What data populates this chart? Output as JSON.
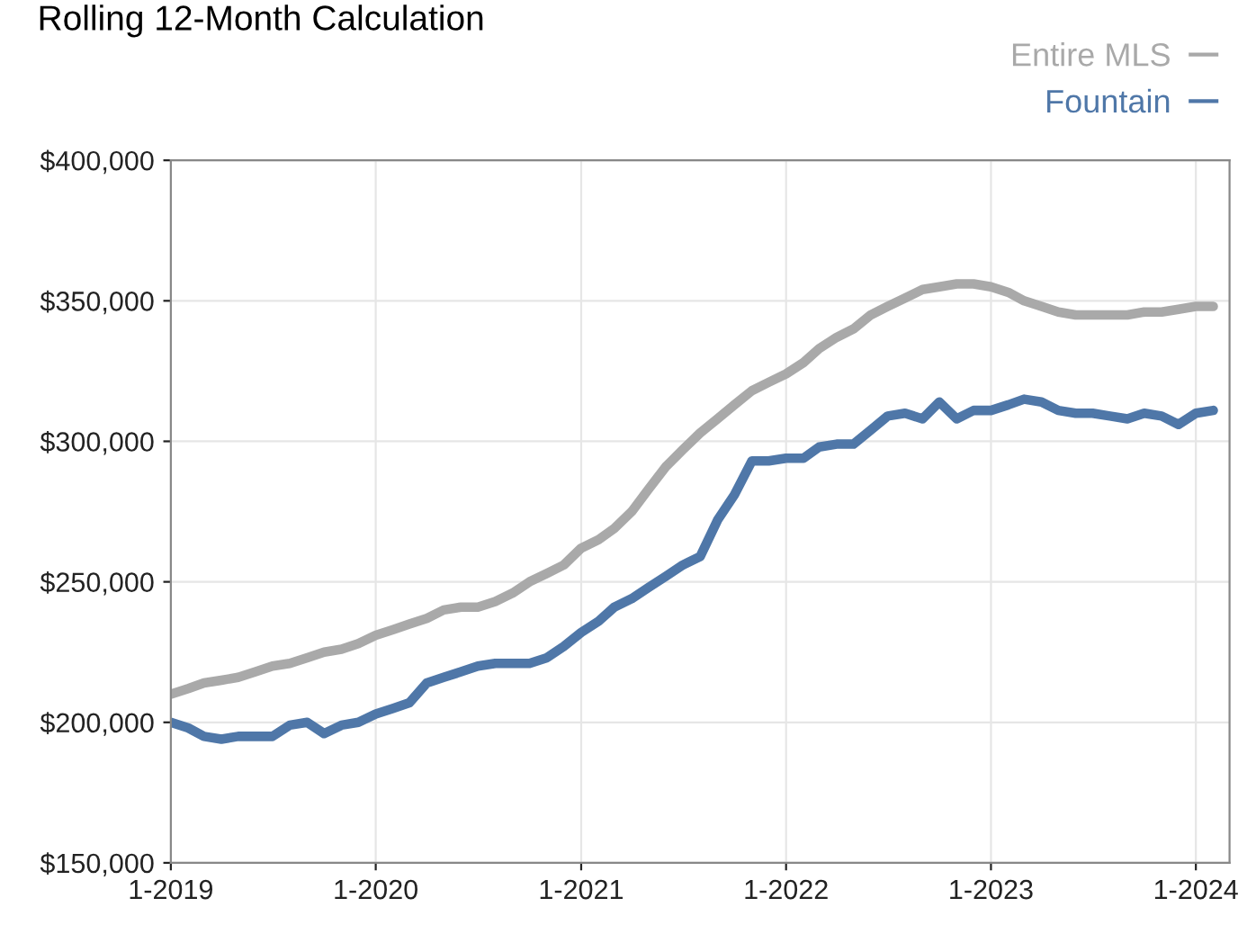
{
  "chart_data": {
    "type": "line",
    "title": "Rolling 12-Month Calculation",
    "x": [
      "2019-01",
      "2019-02",
      "2019-03",
      "2019-04",
      "2019-05",
      "2019-06",
      "2019-07",
      "2019-08",
      "2019-09",
      "2019-10",
      "2019-11",
      "2019-12",
      "2020-01",
      "2020-02",
      "2020-03",
      "2020-04",
      "2020-05",
      "2020-06",
      "2020-07",
      "2020-08",
      "2020-09",
      "2020-10",
      "2020-11",
      "2020-12",
      "2021-01",
      "2021-02",
      "2021-03",
      "2021-04",
      "2021-05",
      "2021-06",
      "2021-07",
      "2021-08",
      "2021-09",
      "2021-10",
      "2021-11",
      "2021-12",
      "2022-01",
      "2022-02",
      "2022-03",
      "2022-04",
      "2022-05",
      "2022-06",
      "2022-07",
      "2022-08",
      "2022-09",
      "2022-10",
      "2022-11",
      "2022-12",
      "2023-01",
      "2023-02",
      "2023-03",
      "2023-04",
      "2023-05",
      "2023-06",
      "2023-07",
      "2023-08",
      "2023-09",
      "2023-10",
      "2023-11",
      "2023-12",
      "2024-01",
      "2024-02"
    ],
    "series": [
      {
        "name": "Entire MLS",
        "color": "#a9a9a9",
        "values": [
          210000,
          212000,
          214000,
          215000,
          216000,
          218000,
          220000,
          221000,
          223000,
          225000,
          226000,
          228000,
          231000,
          233000,
          235000,
          237000,
          240000,
          241000,
          241000,
          243000,
          246000,
          250000,
          253000,
          256000,
          262000,
          265000,
          269000,
          275000,
          283000,
          291000,
          297000,
          303000,
          308000,
          313000,
          318000,
          321000,
          324000,
          328000,
          333000,
          337000,
          340000,
          345000,
          348000,
          351000,
          354000,
          355000,
          356000,
          356000,
          355000,
          353000,
          350000,
          348000,
          346000,
          345000,
          345000,
          345000,
          345000,
          346000,
          346000,
          347000,
          348000,
          348000
        ]
      },
      {
        "name": "Fountain",
        "color": "#4f77a8",
        "values": [
          200000,
          198000,
          195000,
          194000,
          195000,
          195000,
          195000,
          199000,
          200000,
          196000,
          199000,
          200000,
          203000,
          205000,
          207000,
          214000,
          216000,
          218000,
          220000,
          221000,
          221000,
          221000,
          223000,
          227000,
          232000,
          236000,
          241000,
          244000,
          248000,
          252000,
          256000,
          259000,
          272000,
          281000,
          293000,
          293000,
          294000,
          294000,
          298000,
          299000,
          299000,
          304000,
          309000,
          310000,
          308000,
          314000,
          308000,
          311000,
          311000,
          313000,
          315000,
          314000,
          311000,
          310000,
          310000,
          309000,
          308000,
          310000,
          309000,
          306000,
          310000,
          311000
        ]
      }
    ],
    "xlim": [
      "2019-01",
      "2024-03"
    ],
    "xticks": [
      {
        "value": "2019-01",
        "label": "1-2019"
      },
      {
        "value": "2020-01",
        "label": "1-2020"
      },
      {
        "value": "2021-01",
        "label": "1-2021"
      },
      {
        "value": "2022-01",
        "label": "1-2022"
      },
      {
        "value": "2023-01",
        "label": "1-2023"
      },
      {
        "value": "2024-01",
        "label": "1-2024"
      }
    ],
    "ylim": [
      150000,
      400000
    ],
    "yticks": [
      {
        "value": 150000,
        "label": "$150,000"
      },
      {
        "value": 200000,
        "label": "$200,000"
      },
      {
        "value": 250000,
        "label": "$250,000"
      },
      {
        "value": 300000,
        "label": "$300,000"
      },
      {
        "value": 350000,
        "label": "$350,000"
      },
      {
        "value": 400000,
        "label": "$400,000"
      }
    ],
    "grid": true,
    "legend": "top right",
    "marker": "none",
    "line_style": "solid"
  }
}
